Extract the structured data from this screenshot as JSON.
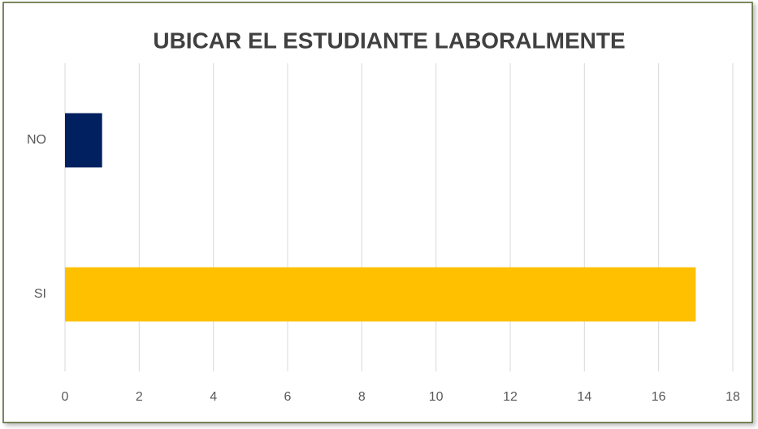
{
  "chart_data": {
    "type": "hbar",
    "title": "UBICAR EL ESTUDIANTE LABORALMENTE",
    "categories": [
      "NO",
      "SI"
    ],
    "values": [
      1,
      17
    ],
    "colors": [
      "#002060",
      "#ffc000"
    ],
    "xlim": [
      0,
      18
    ],
    "xticks": [
      0,
      2,
      4,
      6,
      8,
      10,
      12,
      14,
      16,
      18
    ],
    "grid": true
  }
}
